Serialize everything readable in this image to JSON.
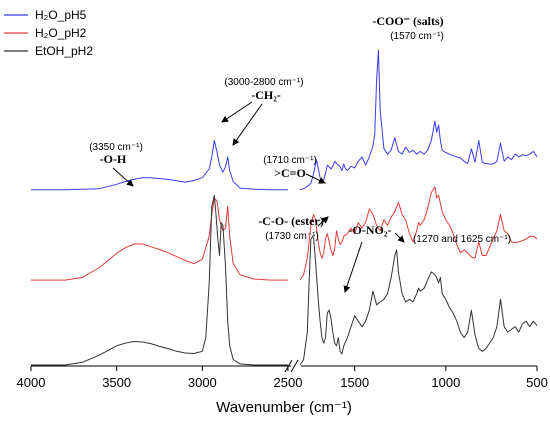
{
  "chart_data": {
    "type": "line",
    "xlabel": "Wavenumber (cm⁻¹)",
    "x_reversed": true,
    "axis_break": [
      2500,
      1800
    ],
    "xlim": [
      4000,
      500
    ],
    "x_ticks": [
      4000,
      3500,
      3000,
      2500,
      1500,
      1000,
      500
    ],
    "y_ticks_shown": false,
    "series": [
      {
        "name": "H₂O_pH5",
        "color": "#3b3bf0",
        "x": [
          4000,
          3800,
          3600,
          3500,
          3450,
          3400,
          3350,
          3300,
          3200,
          3100,
          3050,
          3000,
          2960,
          2945,
          2930,
          2915,
          2900,
          2880,
          2865,
          2852,
          2840,
          2820,
          2780,
          2700,
          2600,
          2500,
          1800,
          1780,
          1760,
          1740,
          1725,
          1710,
          1700,
          1690,
          1680,
          1670,
          1660,
          1650,
          1640,
          1630,
          1620,
          1610,
          1600,
          1580,
          1570,
          1560,
          1550,
          1540,
          1520,
          1500,
          1480,
          1460,
          1440,
          1420,
          1400,
          1390,
          1380,
          1370,
          1360,
          1340,
          1320,
          1300,
          1280,
          1260,
          1240,
          1220,
          1200,
          1180,
          1160,
          1140,
          1120,
          1100,
          1080,
          1060,
          1050,
          1040,
          1030,
          1020,
          1000,
          980,
          960,
          940,
          920,
          900,
          880,
          860,
          840,
          820,
          800,
          780,
          760,
          740,
          720,
          700,
          680,
          660,
          640,
          620,
          600,
          580,
          560,
          540,
          520,
          500
        ],
        "y": [
          0.0,
          0.0,
          0.02,
          0.1,
          0.15,
          0.19,
          0.22,
          0.22,
          0.19,
          0.14,
          0.17,
          0.22,
          0.38,
          0.6,
          0.9,
          0.7,
          0.45,
          0.32,
          0.42,
          0.6,
          0.35,
          0.15,
          0.03,
          0.01,
          0.0,
          0.0,
          0.0,
          0.02,
          0.06,
          0.12,
          0.3,
          0.55,
          0.4,
          0.22,
          0.15,
          0.18,
          0.3,
          0.45,
          0.42,
          0.38,
          0.43,
          0.52,
          0.48,
          0.42,
          0.35,
          0.47,
          0.38,
          0.35,
          0.43,
          0.4,
          0.52,
          0.6,
          0.45,
          0.6,
          0.8,
          1.0,
          2.0,
          2.55,
          1.45,
          0.75,
          0.65,
          0.73,
          0.95,
          0.7,
          0.65,
          0.78,
          0.68,
          0.72,
          0.65,
          0.7,
          0.65,
          0.72,
          0.9,
          1.25,
          1.05,
          1.18,
          0.9,
          0.72,
          0.68,
          0.65,
          0.62,
          0.6,
          0.58,
          0.52,
          0.48,
          0.75,
          0.5,
          0.9,
          0.5,
          0.48,
          0.47,
          0.47,
          0.52,
          0.85,
          0.52,
          0.6,
          0.55,
          0.65,
          0.6,
          0.64,
          0.62,
          0.65,
          0.7,
          0.6
        ]
      },
      {
        "name": "H₂O_pH2",
        "color": "#e33b3b",
        "x": [
          4000,
          3800,
          3700,
          3600,
          3500,
          3450,
          3400,
          3350,
          3300,
          3250,
          3200,
          3150,
          3100,
          3050,
          3000,
          2960,
          2945,
          2930,
          2915,
          2900,
          2880,
          2865,
          2852,
          2840,
          2820,
          2780,
          2700,
          2600,
          2500,
          1800,
          1780,
          1760,
          1750,
          1740,
          1730,
          1725,
          1715,
          1700,
          1690,
          1680,
          1670,
          1660,
          1650,
          1640,
          1630,
          1620,
          1610,
          1600,
          1590,
          1580,
          1570,
          1560,
          1540,
          1520,
          1500,
          1480,
          1460,
          1440,
          1420,
          1400,
          1380,
          1360,
          1340,
          1320,
          1300,
          1280,
          1260,
          1240,
          1220,
          1200,
          1180,
          1160,
          1150,
          1140,
          1120,
          1100,
          1080,
          1060,
          1050,
          1040,
          1030,
          1020,
          1000,
          980,
          960,
          940,
          920,
          900,
          880,
          860,
          840,
          820,
          800,
          780,
          760,
          740,
          720,
          700,
          680,
          660,
          640,
          620,
          600,
          580,
          560,
          540,
          520,
          500
        ],
        "y": [
          0.0,
          0.0,
          0.05,
          0.23,
          0.49,
          0.59,
          0.66,
          0.66,
          0.61,
          0.56,
          0.5,
          0.43,
          0.36,
          0.3,
          0.38,
          0.8,
          1.2,
          1.49,
          1.45,
          1.1,
          0.9,
          0.95,
          1.35,
          0.8,
          0.3,
          0.1,
          0.02,
          0.0,
          0.0,
          0.0,
          0.1,
          0.4,
          0.7,
          1.0,
          1.15,
          1.2,
          1.1,
          0.7,
          0.5,
          0.4,
          0.5,
          0.75,
          0.85,
          0.7,
          0.55,
          0.45,
          0.56,
          0.9,
          0.75,
          0.65,
          0.7,
          0.8,
          0.85,
          0.95,
          0.85,
          1.05,
          0.95,
          1.05,
          1.3,
          1.2,
          1.0,
          0.9,
          1.1,
          1.0,
          1.15,
          1.25,
          1.42,
          1.2,
          1.1,
          0.85,
          0.7,
          0.9,
          1.05,
          1.0,
          1.1,
          1.3,
          1.6,
          1.7,
          1.5,
          1.55,
          1.4,
          1.25,
          1.1,
          1.0,
          0.85,
          0.65,
          0.5,
          0.55,
          0.5,
          0.42,
          0.4,
          0.7,
          0.45,
          0.45,
          0.6,
          0.75,
          0.9,
          1.2,
          0.9,
          0.85,
          0.7,
          0.68,
          0.7,
          0.72,
          0.75,
          0.8,
          0.8,
          0.75
        ]
      },
      {
        "name": "EtOH_pH2",
        "color": "#333333",
        "x": [
          4000,
          3800,
          3700,
          3600,
          3500,
          3450,
          3400,
          3350,
          3300,
          3250,
          3200,
          3150,
          3100,
          3050,
          3000,
          2980,
          2960,
          2945,
          2930,
          2920,
          2910,
          2900,
          2890,
          2880,
          2865,
          2852,
          2840,
          2820,
          2780,
          2700,
          2600,
          2500,
          1800,
          1780,
          1760,
          1750,
          1740,
          1730,
          1725,
          1715,
          1700,
          1690,
          1680,
          1670,
          1660,
          1650,
          1640,
          1630,
          1620,
          1610,
          1600,
          1590,
          1580,
          1570,
          1560,
          1540,
          1520,
          1500,
          1480,
          1460,
          1440,
          1420,
          1400,
          1380,
          1360,
          1340,
          1320,
          1300,
          1280,
          1270,
          1260,
          1240,
          1220,
          1200,
          1180,
          1160,
          1150,
          1140,
          1120,
          1100,
          1080,
          1060,
          1050,
          1040,
          1030,
          1020,
          1000,
          980,
          960,
          940,
          920,
          900,
          880,
          860,
          840,
          820,
          800,
          780,
          760,
          740,
          720,
          700,
          680,
          660,
          640,
          620,
          600,
          580,
          560,
          540,
          520,
          500
        ],
        "y": [
          0.0,
          0.0,
          0.05,
          0.18,
          0.35,
          0.4,
          0.43,
          0.42,
          0.39,
          0.34,
          0.3,
          0.25,
          0.22,
          0.21,
          0.25,
          0.5,
          1.5,
          2.9,
          3.1,
          2.75,
          2.3,
          2.0,
          2.6,
          2.55,
          1.8,
          0.8,
          0.35,
          0.1,
          0.02,
          0.0,
          0.0,
          0.0,
          0.0,
          0.1,
          0.6,
          1.5,
          2.3,
          2.35,
          2.3,
          1.9,
          1.2,
          0.8,
          0.5,
          0.4,
          0.5,
          0.95,
          1.0,
          0.85,
          0.6,
          0.4,
          0.35,
          0.5,
          0.25,
          0.2,
          0.35,
          0.5,
          0.7,
          0.9,
          0.8,
          0.7,
          0.8,
          1.0,
          1.35,
          1.1,
          1.15,
          1.2,
          1.3,
          1.6,
          2.0,
          2.1,
          1.7,
          1.3,
          1.15,
          1.2,
          1.15,
          1.3,
          1.4,
          1.35,
          1.4,
          1.55,
          1.7,
          1.65,
          1.6,
          1.5,
          1.6,
          1.3,
          1.2,
          1.05,
          0.95,
          0.8,
          0.6,
          0.5,
          0.6,
          1.0,
          0.55,
          0.3,
          0.25,
          0.3,
          0.4,
          0.5,
          0.7,
          1.2,
          0.7,
          0.6,
          0.65,
          0.7,
          0.6,
          0.75,
          0.8,
          0.7,
          0.8,
          0.72
        ]
      }
    ],
    "offsets": [
      3.2,
      1.55,
      0.0
    ],
    "ylim": [
      0.0,
      6.3
    ],
    "legend": {
      "position": "top-left"
    },
    "annotations": {
      "oh_wavenumber": "(3350 cm⁻¹)",
      "oh_group": "-O-H",
      "ch2_wavenumber": "(3000-2800 cm⁻¹)",
      "ch2_group": "-CH₂-",
      "coo_group": "-COO⁻ (salts)",
      "coo_wavenumber": "(1570 cm⁻¹)",
      "co_wavenumber": "(1710 cm⁻¹)",
      "co_group": ">C=O",
      "ester_group": "-C-O- (ester)",
      "ester_wavenumber": "(1730 cm⁻¹)",
      "no2_group": "-O-NO₂-",
      "no2_wavenumber": "(1270 and 1625 cm⁻¹)"
    }
  }
}
